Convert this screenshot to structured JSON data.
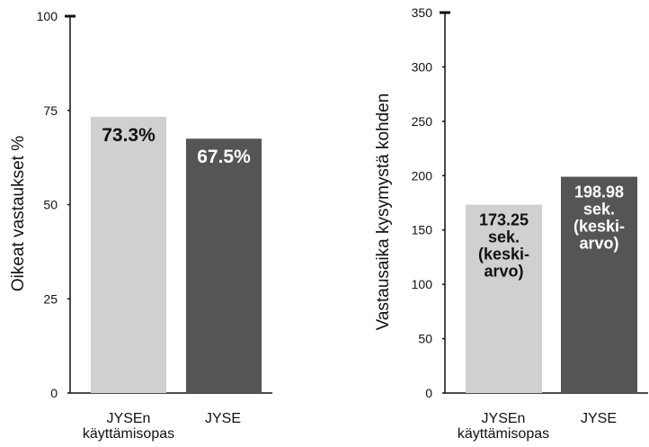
{
  "chart_data": [
    {
      "type": "bar",
      "ylabel": "Oikeat vastaukset %",
      "ylim": [
        0,
        100
      ],
      "yticks": [
        0,
        25,
        50,
        75,
        100
      ],
      "categories": [
        [
          "JYSEn",
          "käyttämisopas"
        ],
        [
          "JYSE"
        ]
      ],
      "values": [
        73.3,
        67.5
      ],
      "bar_labels": [
        [
          "73.3%"
        ],
        [
          "67.5%"
        ]
      ],
      "colors": [
        "#d0d0d0",
        "#555555"
      ],
      "label_colors": [
        "#111111",
        "#ffffff"
      ]
    },
    {
      "type": "bar",
      "ylabel": "Vastausaika kysymystä kohden",
      "ylim": [
        0,
        350
      ],
      "yticks": [
        0,
        50,
        100,
        150,
        200,
        250,
        300,
        350
      ],
      "categories": [
        [
          "JYSEn",
          "käyttämisopas"
        ],
        [
          "JYSE"
        ]
      ],
      "values": [
        173.25,
        198.98
      ],
      "bar_labels": [
        [
          "173.25",
          "sek.",
          "(keski-",
          "arvo)"
        ],
        [
          "198.98",
          "sek.",
          "(keski-",
          "arvo)"
        ]
      ],
      "colors": [
        "#d0d0d0",
        "#555555"
      ],
      "label_colors": [
        "#111111",
        "#ffffff"
      ]
    }
  ]
}
